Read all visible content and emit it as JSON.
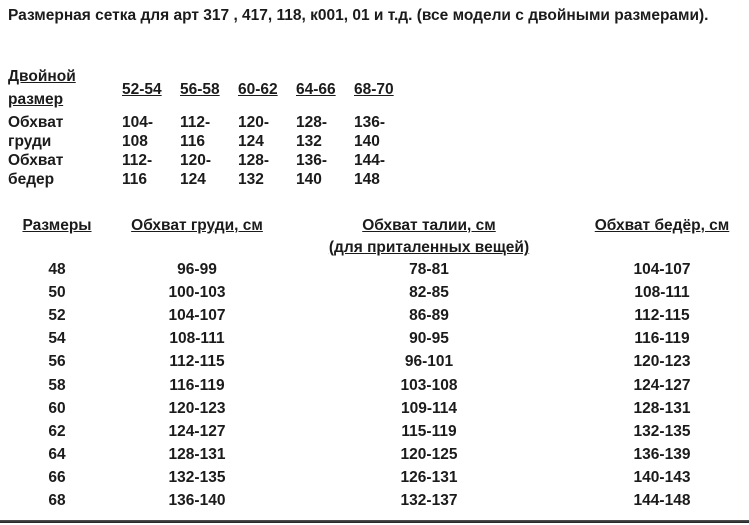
{
  "title": "Размерная сетка для  арт 317 , 417, 118, к001, 01 и т.д. (все модели с двойными размерами).",
  "double_table": {
    "header_line1": "Двойной",
    "header_line2": "размер",
    "sizes": [
      "52-54",
      "56-58",
      "60-62",
      "64-66",
      "68-70"
    ],
    "rows": [
      {
        "label1": "Обхват",
        "label2": "груди",
        "values1": [
          "104-",
          "112-",
          "120-",
          "128-",
          "136-"
        ],
        "values2": [
          "108",
          "116",
          "124",
          "132",
          "140"
        ]
      },
      {
        "label1": "Обхват",
        "label2": "бедер",
        "values1": [
          "112-",
          "120-",
          "128-",
          "136-",
          "144-"
        ],
        "values2": [
          "116",
          "124",
          "132",
          "140",
          "148"
        ]
      }
    ]
  },
  "size_table": {
    "headers": [
      "Размеры",
      "Обхват груди, см",
      "Обхват талии, см",
      "Обхват бедёр, см"
    ],
    "waist_subheader": "(для приталенных вещей)",
    "rows": [
      [
        "48",
        "96-99",
        "78-81",
        "104-107"
      ],
      [
        "50",
        "100-103",
        "82-85",
        "108-111"
      ],
      [
        "52",
        "104-107",
        "86-89",
        "112-115"
      ],
      [
        "54",
        "108-111",
        "90-95",
        "116-119"
      ],
      [
        "56",
        "112-115",
        "96-101",
        "120-123"
      ],
      [
        "58",
        "116-119",
        "103-108",
        "124-127"
      ],
      [
        "60",
        "120-123",
        "109-114",
        "128-131"
      ],
      [
        "62",
        "124-127",
        "115-119",
        "132-135"
      ],
      [
        "64",
        "128-131",
        "120-125",
        "136-139"
      ],
      [
        "66",
        "132-135",
        "126-131",
        "140-143"
      ],
      [
        "68",
        "136-140",
        "132-137",
        "144-148"
      ]
    ]
  }
}
